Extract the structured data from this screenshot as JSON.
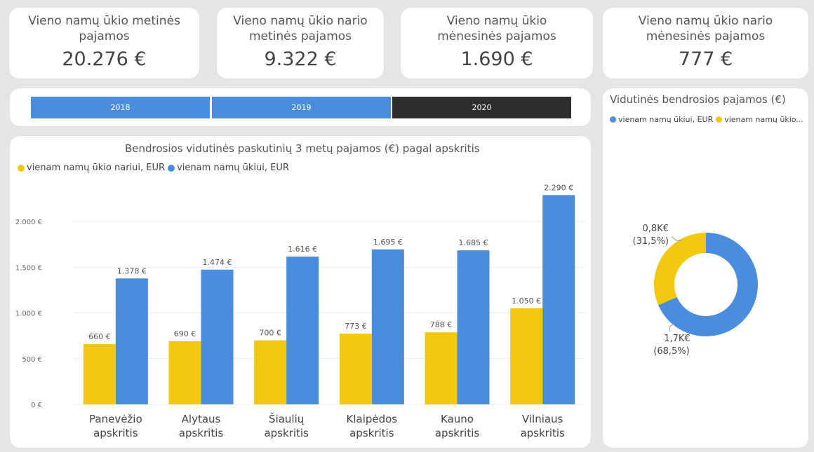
{
  "kpis": [
    {
      "title": "Vieno namų ūkio metinės pajamos",
      "value": "20.276 €"
    },
    {
      "title": "Vieno namų ūkio nario metinės pajamos",
      "value": "9.322 €"
    },
    {
      "title": "Vieno namų ūkio mėnesinės pajamos",
      "value": "1.690 €"
    },
    {
      "title": "Vieno namų ūkio nario mėnesinės pajamos",
      "value": "777 €"
    }
  ],
  "year_slicer": {
    "options": [
      "2018",
      "2019",
      "2020"
    ],
    "selected": "2020"
  },
  "colors": {
    "yellow": "#f2c811",
    "blue": "#4a8ddc",
    "dark": "#2d2d2d"
  },
  "bar_chart": {
    "title": "Bendrosios vidutinės paskutinių 3 metų pajamos (€) pagal apskritis",
    "legend": [
      "vienam namų ūkio nariui, EUR",
      "vienam namų ūkiui, EUR"
    ]
  },
  "donut": {
    "title": "Vidutinės bendrosios pajamos (€)",
    "legend": [
      "vienam namų ūkiui, EUR",
      "vienam namų ūkio..."
    ],
    "labels": [
      {
        "value": "0,8K€",
        "pct": "(31,5%)"
      },
      {
        "value": "1,7K€",
        "pct": "(68,5%)"
      }
    ]
  },
  "chart_data": [
    {
      "type": "bar",
      "title": "Bendrosios vidutinės paskutinių 3 metų pajamos (€) pagal apskritis",
      "categories": [
        [
          "Panevėžio",
          "apskritis"
        ],
        [
          "Alytaus",
          "apskritis"
        ],
        [
          "Šiaulių",
          "apskritis"
        ],
        [
          "Klaipėdos",
          "apskritis"
        ],
        [
          "Kauno",
          "apskritis"
        ],
        [
          "Vilniaus",
          "apskritis"
        ]
      ],
      "series": [
        {
          "name": "vienam namų ūkio nariui, EUR",
          "values": [
            660,
            690,
            700,
            773,
            788,
            1050
          ],
          "labels": [
            "660 €",
            "690 €",
            "700 €",
            "773 €",
            "788 €",
            "1.050 €"
          ]
        },
        {
          "name": "vienam namų ūkiui, EUR",
          "values": [
            1378,
            1474,
            1616,
            1695,
            1685,
            2290
          ],
          "labels": [
            "1.378 €",
            "1.474 €",
            "1.616 €",
            "1.695 €",
            "1.685 €",
            "2.290 €"
          ]
        }
      ],
      "yticks": [
        0,
        500,
        1000,
        1500,
        2000
      ],
      "ytick_labels": [
        "0 €",
        "500 €",
        "1.000 €",
        "1.500 €",
        "2.000 €"
      ],
      "ylim": [
        0,
        2400
      ],
      "grid": true,
      "legend_position": "top-left"
    },
    {
      "type": "pie",
      "donut": true,
      "title": "Vidutinės bendrosios pajamos (€)",
      "slices": [
        {
          "name": "vienam namų ūkiui, EUR",
          "value": 1.7,
          "percent": 68.5
        },
        {
          "name": "vienam namų ūkio...",
          "value": 0.8,
          "percent": 31.5
        }
      ],
      "legend_position": "top"
    }
  ]
}
